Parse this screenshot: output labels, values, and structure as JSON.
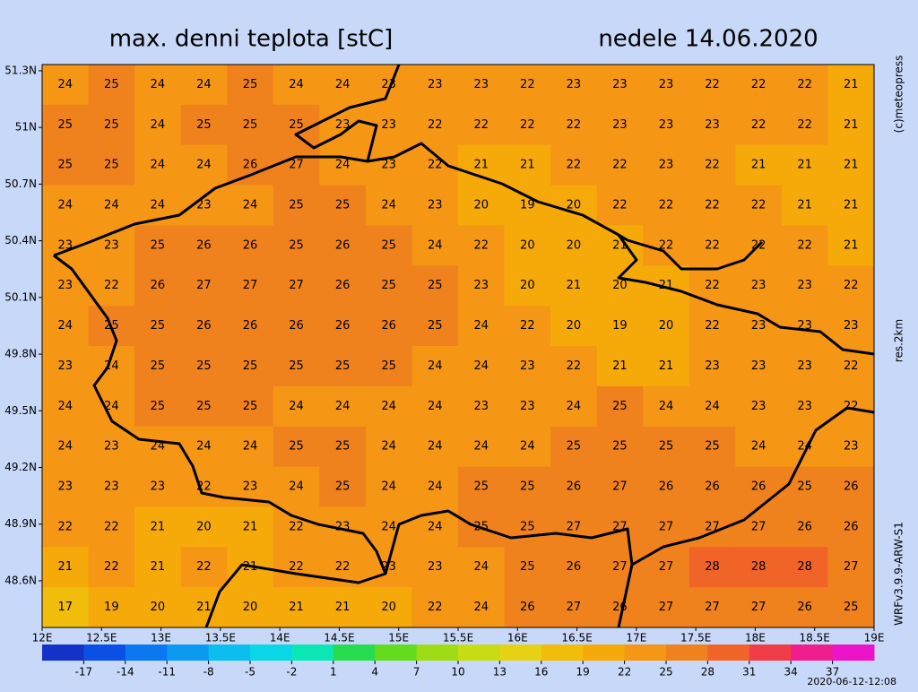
{
  "title": "max. denni teplota [stC]",
  "date": "nedele 14.06.2020",
  "credit": "(c)meteopress",
  "resolution": "res.2km",
  "model": "WRFv3.9.9-ARW-S1",
  "timestamp": "2020-06-12-12:08",
  "lat_axis": {
    "lim": [
      48.353,
      51.333
    ],
    "ticks": [
      {
        "value": 51.3,
        "label": "51.3N"
      },
      {
        "value": 51,
        "label": "51N"
      },
      {
        "value": 50.7,
        "label": "50.7N"
      },
      {
        "value": 50.4,
        "label": "50.4N"
      },
      {
        "value": 50.1,
        "label": "50.1N"
      },
      {
        "value": 49.8,
        "label": "49.8N"
      },
      {
        "value": 49.5,
        "label": "49.5N"
      },
      {
        "value": 49.2,
        "label": "49.2N"
      },
      {
        "value": 48.9,
        "label": "48.9N"
      },
      {
        "value": 48.6,
        "label": "48.6N"
      }
    ]
  },
  "lon_axis": {
    "lim": [
      12,
      19
    ],
    "ticks": [
      {
        "value": 12,
        "label": "12E"
      },
      {
        "value": 12.5,
        "label": "12.5E"
      },
      {
        "value": 13,
        "label": "13E"
      },
      {
        "value": 13.5,
        "label": "13.5E"
      },
      {
        "value": 14,
        "label": "14E"
      },
      {
        "value": 14.5,
        "label": "14.5E"
      },
      {
        "value": 15,
        "label": "15E"
      },
      {
        "value": 15.5,
        "label": "15.5E"
      },
      {
        "value": 16,
        "label": "16E"
      },
      {
        "value": 16.5,
        "label": "16.5E"
      },
      {
        "value": 17,
        "label": "17E"
      },
      {
        "value": 17.5,
        "label": "17.5E"
      },
      {
        "value": 18,
        "label": "18E"
      },
      {
        "value": 18.5,
        "label": "18.5E"
      },
      {
        "value": 19,
        "label": "19E"
      }
    ]
  },
  "colorbar": {
    "lim": [
      -20,
      40
    ],
    "step": 3,
    "ticks": [
      -17,
      -14,
      -11,
      -8,
      -5,
      -2,
      1,
      4,
      7,
      10,
      13,
      16,
      19,
      22,
      25,
      28,
      31,
      34,
      37
    ],
    "colors": [
      "#1432c8",
      "#0a50e6",
      "#0a78f0",
      "#0a9bf0",
      "#0abef0",
      "#0ad7e6",
      "#0ae6b4",
      "#28dc50",
      "#64dc1e",
      "#a0dc14",
      "#c8dc14",
      "#e6d214",
      "#f0be0a",
      "#f5aa0a",
      "#f59614",
      "#f0821e",
      "#f06428",
      "#f03c46",
      "#f01e8c",
      "#eb14c8"
    ]
  },
  "field": {
    "values": [
      [
        24,
        25,
        24,
        24,
        25,
        24,
        24,
        23,
        23,
        23,
        22,
        23,
        23,
        23,
        22,
        22,
        22,
        21
      ],
      [
        25,
        25,
        24,
        25,
        25,
        25,
        23,
        23,
        22,
        22,
        22,
        22,
        23,
        23,
        23,
        22,
        22,
        21
      ],
      [
        25,
        25,
        24,
        24,
        26,
        27,
        24,
        23,
        22,
        21,
        21,
        22,
        22,
        23,
        22,
        21,
        21,
        21
      ],
      [
        24,
        24,
        24,
        23,
        24,
        25,
        25,
        24,
        23,
        20,
        19,
        20,
        22,
        22,
        22,
        22,
        21,
        21
      ],
      [
        23,
        23,
        25,
        26,
        26,
        25,
        26,
        25,
        24,
        22,
        20,
        20,
        21,
        22,
        22,
        22,
        22,
        21
      ],
      [
        23,
        22,
        26,
        27,
        27,
        27,
        26,
        25,
        25,
        23,
        20,
        21,
        20,
        21,
        22,
        23,
        23,
        22
      ],
      [
        24,
        25,
        25,
        26,
        26,
        26,
        26,
        26,
        25,
        24,
        22,
        20,
        19,
        20,
        22,
        23,
        23,
        23
      ],
      [
        23,
        24,
        25,
        25,
        25,
        25,
        25,
        25,
        24,
        24,
        23,
        22,
        21,
        21,
        23,
        23,
        23,
        22
      ],
      [
        24,
        24,
        25,
        25,
        25,
        24,
        24,
        24,
        24,
        23,
        23,
        24,
        25,
        24,
        24,
        23,
        23,
        22
      ],
      [
        24,
        23,
        24,
        24,
        24,
        25,
        25,
        24,
        24,
        24,
        24,
        25,
        25,
        25,
        25,
        24,
        24,
        23
      ],
      [
        23,
        23,
        23,
        22,
        23,
        24,
        25,
        24,
        24,
        25,
        25,
        26,
        27,
        26,
        26,
        26,
        25,
        26
      ],
      [
        22,
        22,
        21,
        20,
        21,
        22,
        23,
        24,
        24,
        25,
        25,
        27,
        27,
        27,
        27,
        27,
        26,
        26
      ],
      [
        21,
        22,
        21,
        22,
        21,
        22,
        22,
        23,
        23,
        24,
        25,
        26,
        27,
        27,
        28,
        28,
        28,
        27
      ],
      [
        17,
        19,
        20,
        21,
        20,
        21,
        21,
        20,
        22,
        24,
        26,
        27,
        26,
        27,
        27,
        27,
        26,
        25
      ]
    ]
  }
}
